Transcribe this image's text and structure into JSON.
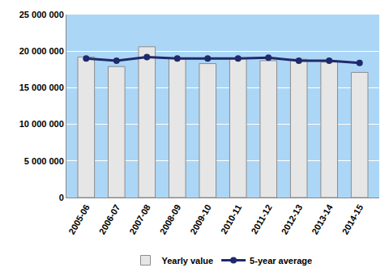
{
  "chart_data": {
    "type": "bar",
    "categories": [
      "2005-06",
      "2006-07",
      "2007-08",
      "2008-09",
      "2009-10",
      "2010-11",
      "2011-12",
      "2012-13",
      "2013-14",
      "2014-15"
    ],
    "series": [
      {
        "name": "Yearly value",
        "type": "bar",
        "color": "#e6e6e6",
        "values": [
          19200000,
          17900000,
          20600000,
          19000000,
          18300000,
          19000000,
          18700000,
          18900000,
          18500000,
          17100000
        ]
      },
      {
        "name": "5-year average",
        "type": "line",
        "color": "#1f2a6b",
        "marker": "circle",
        "values": [
          19000000,
          18700000,
          19200000,
          19000000,
          19000000,
          19000000,
          19100000,
          18700000,
          18700000,
          18400000
        ]
      }
    ],
    "ylim": [
      0,
      25000000
    ],
    "yticks": [
      0,
      {
        "value": 5000000,
        "label": "5 000 000"
      },
      {
        "value": 10000000,
        "label": "10 000 000"
      },
      {
        "value": 15000000,
        "label": "15 000 000"
      },
      {
        "value": 20000000,
        "label": "20 000 000"
      },
      {
        "value": 25000000,
        "label": "25 000 000"
      }
    ],
    "grid": true,
    "legend": "bottom"
  }
}
